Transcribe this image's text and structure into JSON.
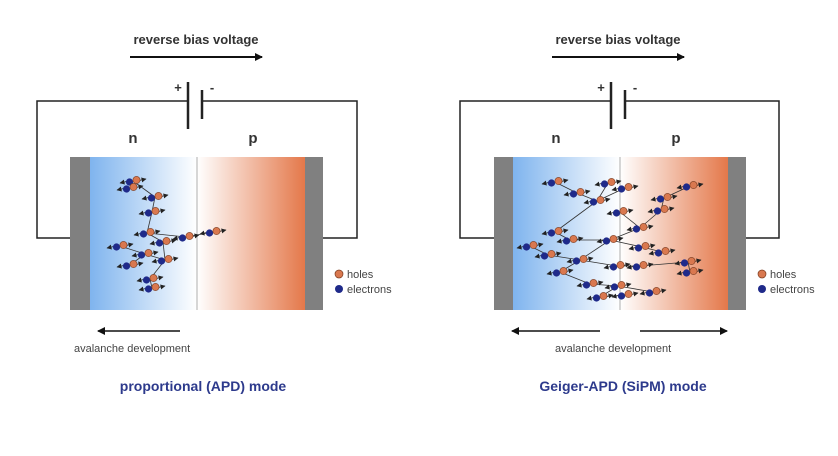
{
  "colors": {
    "hole": "#d9784f",
    "electron": "#1f2a8a",
    "n_region": "#7fb4ee",
    "p_region": "#e4784a",
    "contact": "#808080",
    "mode_title": "#2d3a8c"
  },
  "panels": [
    {
      "id": "proportional",
      "voltage_label": "reverse bias voltage",
      "plus": "+",
      "minus": "-",
      "n_label": "n",
      "p_label": "p",
      "legend": {
        "holes": "holes",
        "electrons": "electrons"
      },
      "avalanche_label": "avalanche development",
      "mode_title": "proportional (APD) mode"
    },
    {
      "id": "geiger",
      "voltage_label": "reverse bias voltage",
      "plus": "+",
      "minus": "-",
      "n_label": "n",
      "p_label": "p",
      "legend": {
        "holes": "holes",
        "electrons": "electrons"
      },
      "avalanche_label": "avalanche development",
      "mode_title": "Geiger-APD (SiPM) mode"
    }
  ]
}
